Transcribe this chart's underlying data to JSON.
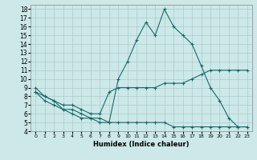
{
  "title": "",
  "xlabel": "Humidex (Indice chaleur)",
  "background_color": "#cce8e8",
  "grid_color": "#aacccc",
  "line_color": "#1a6b6b",
  "xlim": [
    -0.5,
    23.5
  ],
  "ylim": [
    4,
    18.5
  ],
  "xticks": [
    0,
    1,
    2,
    3,
    4,
    5,
    6,
    7,
    8,
    9,
    10,
    11,
    12,
    13,
    14,
    15,
    16,
    17,
    18,
    19,
    20,
    21,
    22,
    23
  ],
  "yticks": [
    4,
    5,
    6,
    7,
    8,
    9,
    10,
    11,
    12,
    13,
    14,
    15,
    16,
    17,
    18
  ],
  "series": [
    {
      "x": [
        0,
        1,
        2,
        3,
        4,
        5,
        6,
        7,
        8,
        9,
        10,
        11,
        12,
        13,
        14,
        15,
        16,
        17,
        18,
        19,
        20,
        21,
        22,
        23
      ],
      "y": [
        9,
        8,
        7.5,
        6.5,
        6.5,
        6,
        5.5,
        5.5,
        5,
        10,
        12,
        14.5,
        16.5,
        15,
        18,
        16,
        15,
        14,
        11.5,
        9,
        7.5,
        5.5,
        4.5,
        4.5
      ]
    },
    {
      "x": [
        0,
        1,
        2,
        3,
        4,
        5,
        6,
        7,
        8,
        9,
        10,
        11,
        12,
        13,
        14,
        15,
        16,
        17,
        18,
        19,
        20,
        21,
        22,
        23
      ],
      "y": [
        8.5,
        8,
        7.5,
        7,
        7,
        6.5,
        6,
        6,
        8.5,
        9,
        9,
        9,
        9,
        9,
        9.5,
        9.5,
        9.5,
        10,
        10.5,
        11,
        11,
        11,
        11,
        11
      ]
    },
    {
      "x": [
        0,
        1,
        2,
        3,
        4,
        5,
        6,
        7,
        8,
        9,
        10,
        11,
        12,
        13,
        14,
        15,
        16,
        17,
        18,
        19,
        20,
        21,
        22,
        23
      ],
      "y": [
        8.5,
        7.5,
        7,
        6.5,
        6,
        5.5,
        5.5,
        5,
        5,
        5,
        5,
        5,
        5,
        5,
        5,
        4.5,
        4.5,
        4.5,
        4.5,
        4.5,
        4.5,
        4.5,
        4.5,
        4.5
      ]
    }
  ]
}
